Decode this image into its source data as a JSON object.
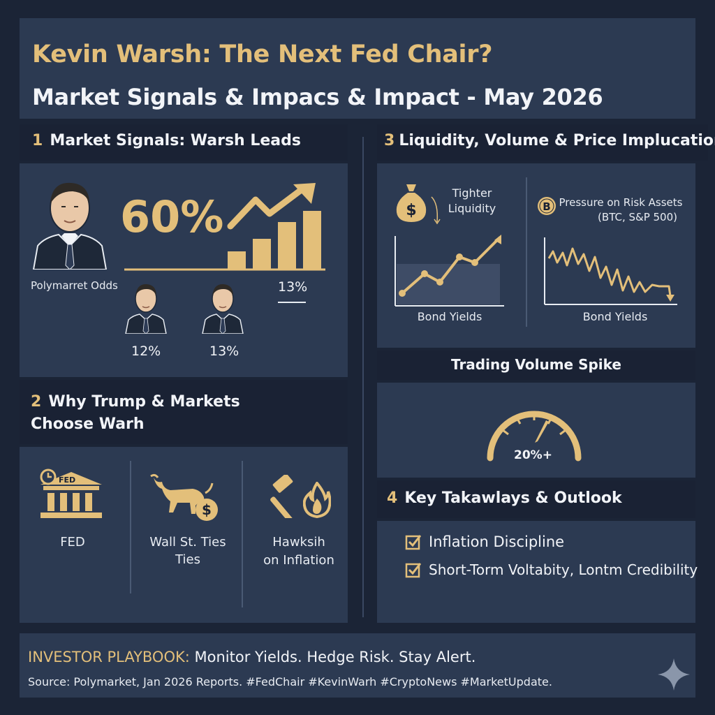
{
  "header": {
    "title": "Kevin Warsh: The Next Fed Chair?",
    "subtitle": "Market Signals & Impacs & Impact - May 2026"
  },
  "section1": {
    "num": "1",
    "title": "Market Signals: Warsh Leads",
    "big_pct": "60%",
    "odds_label": "Polymarret Odds",
    "bar_pct": "13%",
    "candidate2_pct": "12%",
    "candidate3_pct": "13%"
  },
  "section2": {
    "num": "2",
    "title_line1": "Why Trump & Markets",
    "title_line2": "Choose Warh",
    "fed_sign": "FED",
    "items": [
      {
        "label": "FED"
      },
      {
        "label_line1": "Wall St. Ties",
        "label_line2": "Ties"
      },
      {
        "label_line1": "Hawksih",
        "label_line2": "on Inflation"
      }
    ]
  },
  "section3": {
    "num": "3",
    "title": "Liquidity, Volume & Price Implucations",
    "left_label_line1": "Tighter",
    "left_label_line2": "Liquidity",
    "right_label_line1": "Pressure on Risk Assets",
    "right_label_line2": "(BTC, S&P 500)",
    "left_chart_xlabel": "Bond Yields",
    "right_chart_xlabel": "Bond Yields",
    "volume_title": "Trading Volume Spike",
    "gauge_value": "20%+"
  },
  "section4": {
    "num": "4",
    "title": "Key Takawlays & Outlook",
    "items": [
      "Inflation Discipline",
      "Short-Torm Voltabity, Lontm Credibility"
    ]
  },
  "footer": {
    "playbook_label": "INVESTOR PLAYBOOK:",
    "playbook_text": "Monitor Yields. Hedge Risk. Stay Alert.",
    "source": "Source: Polymarket, Jan 2026 Reports. #FedChair #KevinWarh #CryptoNews #MarketUpdate."
  },
  "colors": {
    "background": "#1b2436",
    "panel": "#2c3a52",
    "accent_gold": "#e3bf7a",
    "text": "#f2f4f8"
  },
  "icons": [
    "person-portrait-icon",
    "trend-arrow-icon",
    "bar-chart-icon",
    "money-bag-icon",
    "bitcoin-icon",
    "bank-building-icon",
    "clock-icon",
    "bull-icon",
    "dollar-coin-icon",
    "gavel-icon",
    "flame-icon",
    "gauge-icon",
    "checkbox-icon",
    "sparkle-icon"
  ]
}
